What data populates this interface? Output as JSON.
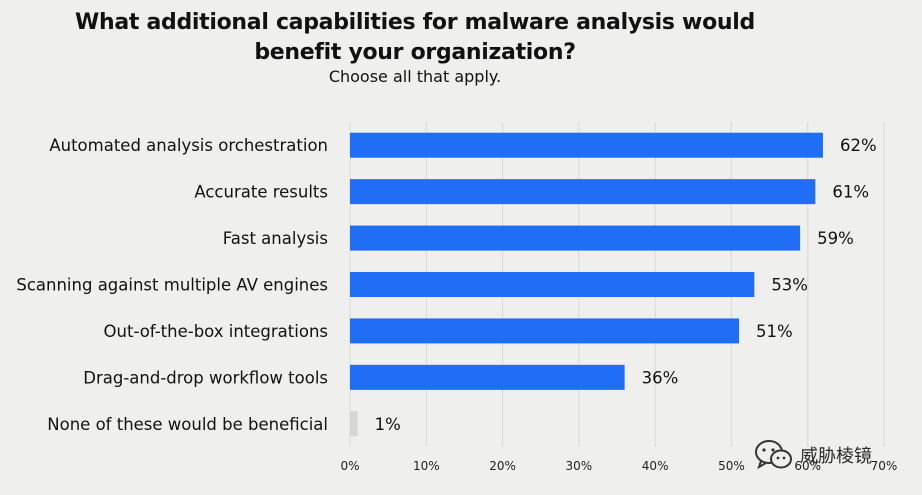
{
  "chart_data": {
    "type": "bar",
    "orientation": "horizontal",
    "title": "What additional capabilities for malware analysis would benefit your organization?",
    "title_line1": "What additional capabilities for malware analysis would",
    "title_line2": "benefit your organization?",
    "subtitle": "Choose all that apply.",
    "categories": [
      "Automated analysis orchestration",
      "Accurate results",
      "Fast analysis",
      "Scanning against multiple AV engines",
      "Out-of-the-box integrations",
      "Drag-and-drop workflow tools",
      "None of these would be beneficial"
    ],
    "values": [
      62,
      61,
      59,
      53,
      51,
      36,
      1
    ],
    "value_labels": [
      "62%",
      "61%",
      "59%",
      "53%",
      "51%",
      "36%",
      "1%"
    ],
    "bar_colors": [
      "#1f6ef5",
      "#1f6ef5",
      "#1f6ef5",
      "#1f6ef5",
      "#1f6ef5",
      "#1f6ef5",
      "#d6d6d6"
    ],
    "xlim": [
      0,
      70
    ],
    "x_ticks": [
      "0%",
      "10%",
      "20%",
      "30%",
      "40%",
      "50%",
      "60%",
      "70%"
    ],
    "grid": true,
    "grid_color": "#d9d9d9"
  },
  "watermark": {
    "text": "威胁棱镜",
    "icon": "wechat-icon"
  }
}
